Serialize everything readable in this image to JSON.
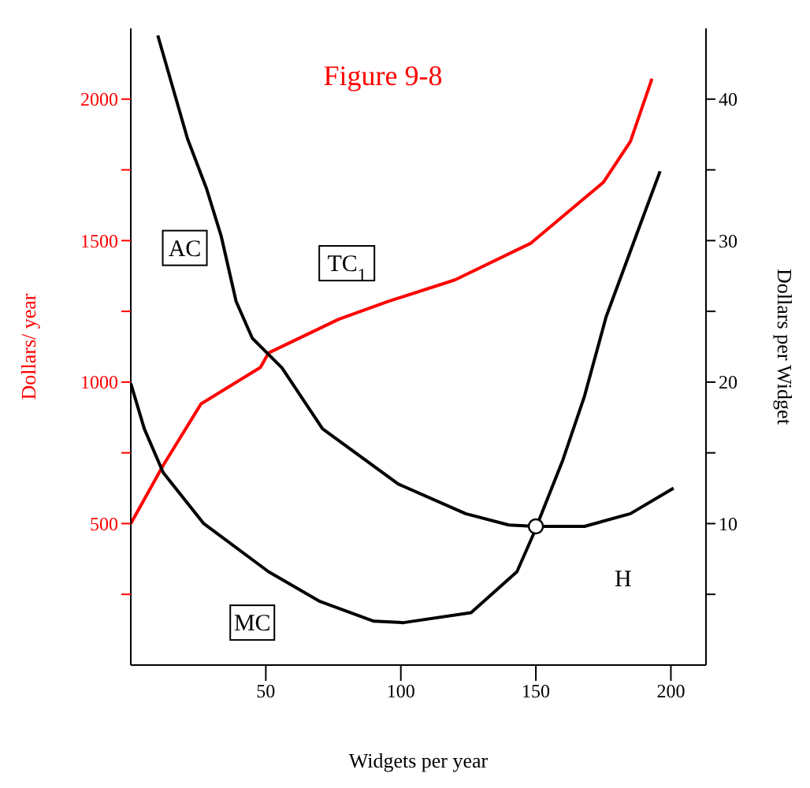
{
  "chart_data": {
    "type": "line",
    "title": "Figure 9-8",
    "xlabel": "Widgets per year",
    "ylabel": "Dollars/ year",
    "y2label": "Dollars per Widget",
    "xlim": [
      0,
      213
    ],
    "xticks": [
      50,
      100,
      150,
      200
    ],
    "ylim": [
      0,
      2250
    ],
    "yticks": [
      {
        "value": 250,
        "label": null
      },
      500,
      {
        "value": 750,
        "label": null
      },
      1000,
      {
        "value": 1250,
        "label": null
      },
      1500,
      {
        "value": 1750,
        "label": null
      },
      2000
    ],
    "y2lim": [
      0,
      45
    ],
    "y2ticks": [
      {
        "value": 5,
        "label": null
      },
      10,
      {
        "value": 15,
        "label": null
      },
      20,
      {
        "value": 25,
        "label": null
      },
      30,
      {
        "value": 35,
        "label": null
      },
      40
    ],
    "grid": false,
    "legend": false,
    "marker": "none",
    "line_style": "solid",
    "series": [
      {
        "color": "#ff0000",
        "x": [
          0,
          12,
          26,
          48,
          51,
          77,
          95,
          120,
          148,
          175,
          185,
          193
        ],
        "values": [
          500,
          706,
          923,
          1052,
          1103,
          1222,
          1284,
          1361,
          1490,
          1706,
          1850,
          2072
        ]
      },
      {
        "color": "#000000",
        "axis": "y2",
        "x": [
          10,
          21,
          28,
          33.5,
          39,
          45,
          56,
          71,
          99,
          124,
          140,
          150,
          168,
          185,
          201
        ],
        "values": [
          44.5,
          37.2,
          33.7,
          30.3,
          25.7,
          23.1,
          21,
          16.7,
          12.8,
          10.7,
          9.9,
          9.8,
          9.8,
          10.7,
          12.5
        ]
      },
      {
        "color": "#000000",
        "axis": "y2",
        "x": [
          0,
          5,
          12,
          27,
          51,
          70,
          90,
          101,
          126,
          143,
          149,
          160,
          168,
          176,
          188,
          196
        ],
        "values": [
          19.9,
          16.7,
          13.6,
          10,
          6.6,
          4.5,
          3.1,
          3,
          3.7,
          6.6,
          9.2,
          14.5,
          19,
          24.6,
          30.8,
          34.9
        ]
      },
      {
        "type": "scatter",
        "color": "#000000",
        "axis": "y2",
        "marker": "circle",
        "x": [
          150
        ],
        "values": [
          9.8
        ]
      }
    ],
    "annotations": [
      {
        "text": "AC",
        "x": 20,
        "y": 1474
      },
      {
        "text": "TC$_{1}$",
        "x": 80,
        "y": 1420
      },
      {
        "text": "MC",
        "x": 45,
        "y": 150
      },
      "H"
    ]
  }
}
